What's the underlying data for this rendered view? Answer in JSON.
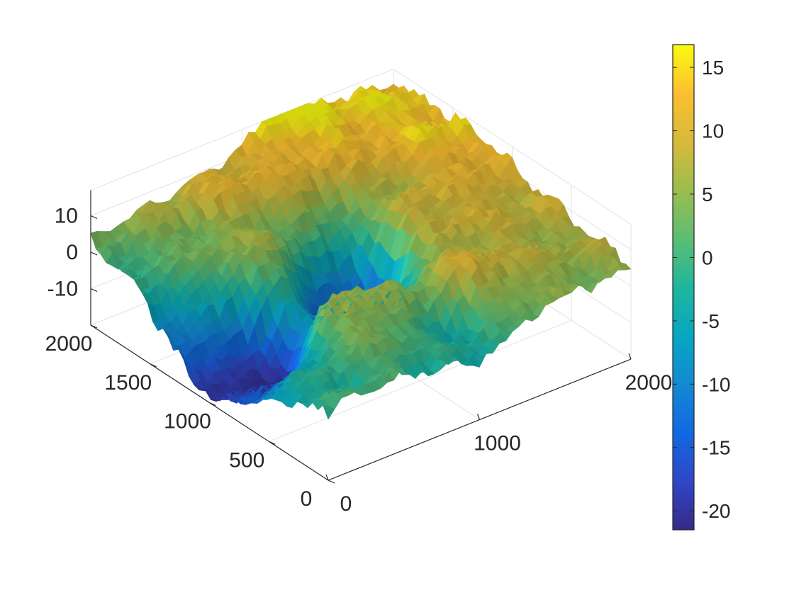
{
  "chart_data": {
    "type": "surface",
    "title": "",
    "xlabel": "",
    "ylabel": "",
    "zlabel": "",
    "xlim": [
      0,
      2000
    ],
    "ylim": [
      0,
      2000
    ],
    "zlim": [
      -20,
      17
    ],
    "grid": true,
    "colormap": "parula",
    "x_ticks": [
      {
        "value": 0,
        "label": "0"
      },
      {
        "value": 1000,
        "label": "1000"
      },
      {
        "value": 2000,
        "label": "2000"
      }
    ],
    "y_ticks": [
      {
        "value": 0,
        "label": "0"
      },
      {
        "value": 500,
        "label": "500"
      },
      {
        "value": 1000,
        "label": "1000"
      },
      {
        "value": 1500,
        "label": "1500"
      },
      {
        "value": 2000,
        "label": "2000"
      }
    ],
    "z_ticks": [
      {
        "value": 10,
        "label": "10"
      },
      {
        "value": 0,
        "label": "0"
      },
      {
        "value": -10,
        "label": "-10"
      }
    ],
    "colorbar": {
      "range": [
        -21.5,
        16.8
      ],
      "ticks": [
        {
          "value": 15,
          "label": "15"
        },
        {
          "value": 10,
          "label": "10"
        },
        {
          "value": 5,
          "label": "5"
        },
        {
          "value": 0,
          "label": "0"
        },
        {
          "value": -5,
          "label": "-5"
        },
        {
          "value": -10,
          "label": "-10"
        },
        {
          "value": -15,
          "label": "-15"
        },
        {
          "value": -20,
          "label": "-20"
        }
      ]
    },
    "surface_features": [
      {
        "x": 1300,
        "y": 2000,
        "z": 17
      },
      {
        "x": 900,
        "y": 1800,
        "z": 11
      },
      {
        "x": 1700,
        "y": 1900,
        "z": 15
      },
      {
        "x": 2000,
        "y": 1400,
        "z": 15
      },
      {
        "x": 600,
        "y": 1400,
        "z": 5
      },
      {
        "x": 300,
        "y": 1000,
        "z": -20
      },
      {
        "x": 1000,
        "y": 1050,
        "z": -18
      },
      {
        "x": 700,
        "y": 600,
        "z": 6
      },
      {
        "x": 1300,
        "y": 450,
        "z": 9
      },
      {
        "x": 1500,
        "y": 1000,
        "z": 10
      },
      {
        "x": 1000,
        "y": 200,
        "z": -3
      }
    ]
  }
}
